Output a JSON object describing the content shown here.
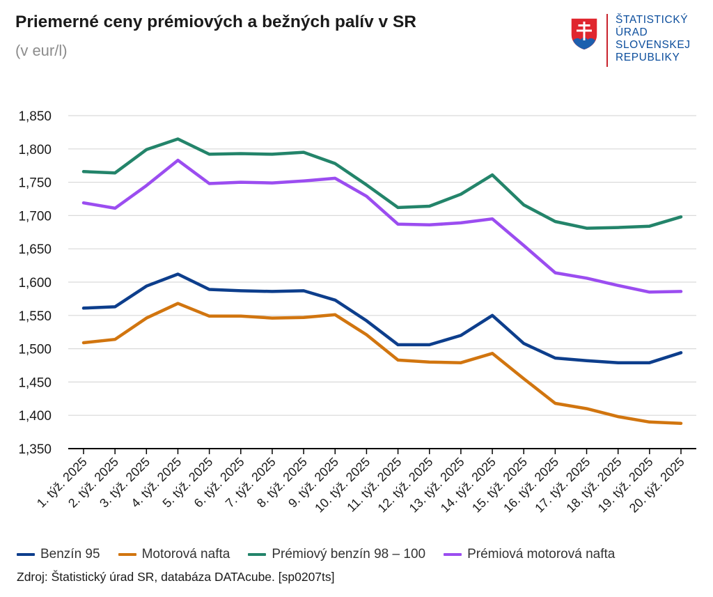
{
  "header": {
    "title": "Priemerné ceny prémiových a bežných palív v SR",
    "subtitle": "(v eur/l)"
  },
  "logo": {
    "lines": [
      "ŠTATISTICKÝ",
      "ÚRAD",
      "SLOVENSKEJ",
      "REPUBLIKY"
    ],
    "colors": {
      "text": "#0b4d9c",
      "bar": "#c8232c",
      "shield_red": "#e0262e",
      "shield_blue": "#1d5fae"
    }
  },
  "source": "Zdroj: Štatistický úrad SR, databáza DATAcube. [sp0207ts]",
  "chart_data": {
    "type": "line",
    "title": "Priemerné ceny prémiových a bežných palív v SR",
    "subtitle": "(v eur/l)",
    "xlabel": "",
    "ylabel": "",
    "ylim": [
      1.35,
      1.85
    ],
    "yticks": [
      "1,350",
      "1,400",
      "1,450",
      "1,500",
      "1,550",
      "1,600",
      "1,650",
      "1,700",
      "1,750",
      "1,800",
      "1,850"
    ],
    "grid": true,
    "legend_position": "bottom",
    "categories": [
      "1. týž. 2025",
      "2. týž. 2025",
      "3. týž. 2025",
      "4. týž. 2025",
      "5. týž. 2025",
      "6. týž. 2025",
      "7. týž. 2025",
      "8. týž. 2025",
      "9. týž. 2025",
      "10. týž. 2025",
      "11. týž. 2025",
      "12. týž. 2025",
      "13. týž. 2025",
      "14. týž. 2025",
      "15. týž. 2025",
      "16. týž. 2025",
      "17. týž. 2025",
      "18. týž. 2025",
      "19. týž. 2025",
      "20. týž. 2025"
    ],
    "series": [
      {
        "name": "Benzín 95",
        "color": "#0d3e8c",
        "values": [
          1.561,
          1.563,
          1.594,
          1.612,
          1.589,
          1.587,
          1.586,
          1.587,
          1.573,
          1.542,
          1.506,
          1.506,
          1.52,
          1.55,
          1.508,
          1.486,
          1.482,
          1.479,
          1.479,
          1.494
        ]
      },
      {
        "name": "Motorová nafta",
        "color": "#d1750f",
        "values": [
          1.509,
          1.514,
          1.546,
          1.568,
          1.549,
          1.549,
          1.546,
          1.547,
          1.551,
          1.521,
          1.483,
          1.48,
          1.479,
          1.493,
          1.455,
          1.418,
          1.41,
          1.398,
          1.39,
          1.388
        ]
      },
      {
        "name": "Prémiový benzín 98 – 100",
        "color": "#23846a",
        "values": [
          1.766,
          1.764,
          1.799,
          1.815,
          1.792,
          1.793,
          1.792,
          1.795,
          1.778,
          1.746,
          1.712,
          1.714,
          1.732,
          1.761,
          1.716,
          1.691,
          1.681,
          1.682,
          1.684,
          1.698
        ]
      },
      {
        "name": "Prémiová motorová nafta",
        "color": "#9b4df0",
        "values": [
          1.719,
          1.711,
          1.745,
          1.783,
          1.748,
          1.75,
          1.749,
          1.752,
          1.756,
          1.729,
          1.687,
          1.686,
          1.689,
          1.695,
          1.655,
          1.614,
          1.606,
          1.595,
          1.585,
          1.586
        ]
      }
    ]
  }
}
